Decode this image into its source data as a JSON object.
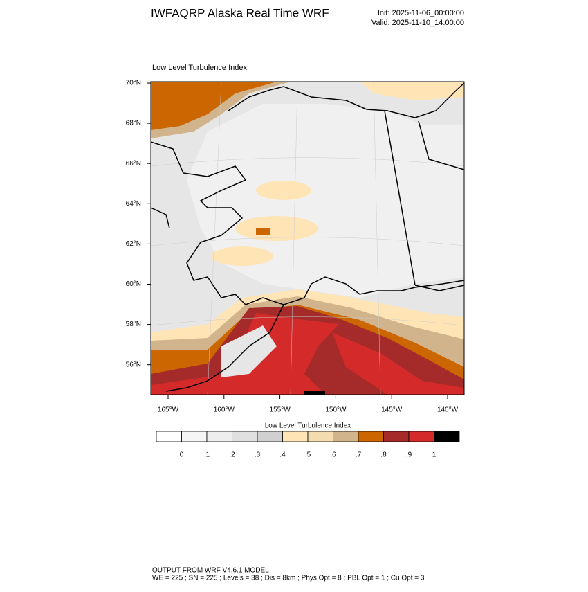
{
  "header": {
    "title": "IWFAQRP Alaska Real Time WRF",
    "init": "Init: 2025-11-06_00:00:00",
    "valid": "Valid: 2025-11-10_14:00:00"
  },
  "map": {
    "title": "Low Level Turbulence Index",
    "lat_labels": [
      "70°N",
      "68°N",
      "66°N",
      "64°N",
      "62°N",
      "60°N",
      "58°N",
      "56°N"
    ],
    "lon_labels": [
      "165°W",
      "160°W",
      "155°W",
      "150°W",
      "145°W",
      "140°W"
    ]
  },
  "colorbar": {
    "title": "Low Level Turbulence Index",
    "colors": [
      "#ffffff",
      "#f5f5f5",
      "#eeeeee",
      "#e0e0e0",
      "#d0d0d0",
      "#ffe4b5",
      "#f3dcb0",
      "#d2b48c",
      "#cc6600",
      "#a52a2a",
      "#d42a2a",
      "#000000"
    ],
    "labels": [
      "0",
      ".1",
      ".2",
      ".3",
      ".4",
      ".5",
      ".6",
      ".7",
      ".8",
      ".9",
      "1"
    ]
  },
  "footer": {
    "line1": "OUTPUT FROM WRF V4.6.1 MODEL",
    "line2": "WE = 225 ; SN = 225 ; Levels = 38 ; Dis = 8km ; Phys Opt = 8 ; PBL Opt = 1 ; Cu Opt = 3"
  }
}
